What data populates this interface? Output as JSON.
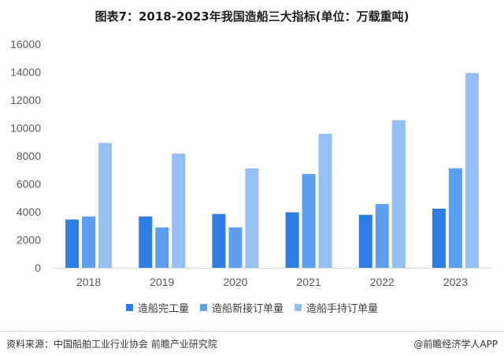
{
  "chart_data": {
    "type": "bar",
    "title": "图表7：2018-2023年我国造船三大指标(单位：万载重吨)",
    "categories": [
      "2018",
      "2019",
      "2020",
      "2021",
      "2022",
      "2023"
    ],
    "series": [
      {
        "name": "造船完工量",
        "color": "#2e7ce6",
        "values": [
          3450,
          3670,
          3850,
          3970,
          3790,
          4230
        ]
      },
      {
        "name": "造船新接订单量",
        "color": "#5c9ff0",
        "values": [
          3670,
          2890,
          2890,
          6710,
          4560,
          7120
        ]
      },
      {
        "name": "造船手持订单量",
        "color": "#93bff4",
        "values": [
          8930,
          8170,
          7110,
          9580,
          10560,
          13940
        ]
      }
    ],
    "ylim": [
      0,
      16000
    ],
    "yticks": [
      0,
      2000,
      4000,
      6000,
      8000,
      10000,
      12000,
      14000,
      16000
    ],
    "grid": false,
    "legend": "bottom",
    "xlabel": "",
    "ylabel": ""
  },
  "footer": {
    "source": "资料来源：中国船舶工业行业协会 前瞻产业研究院",
    "brand": "@前瞻经济学人APP"
  },
  "watermark": "前瞻产业研究院"
}
